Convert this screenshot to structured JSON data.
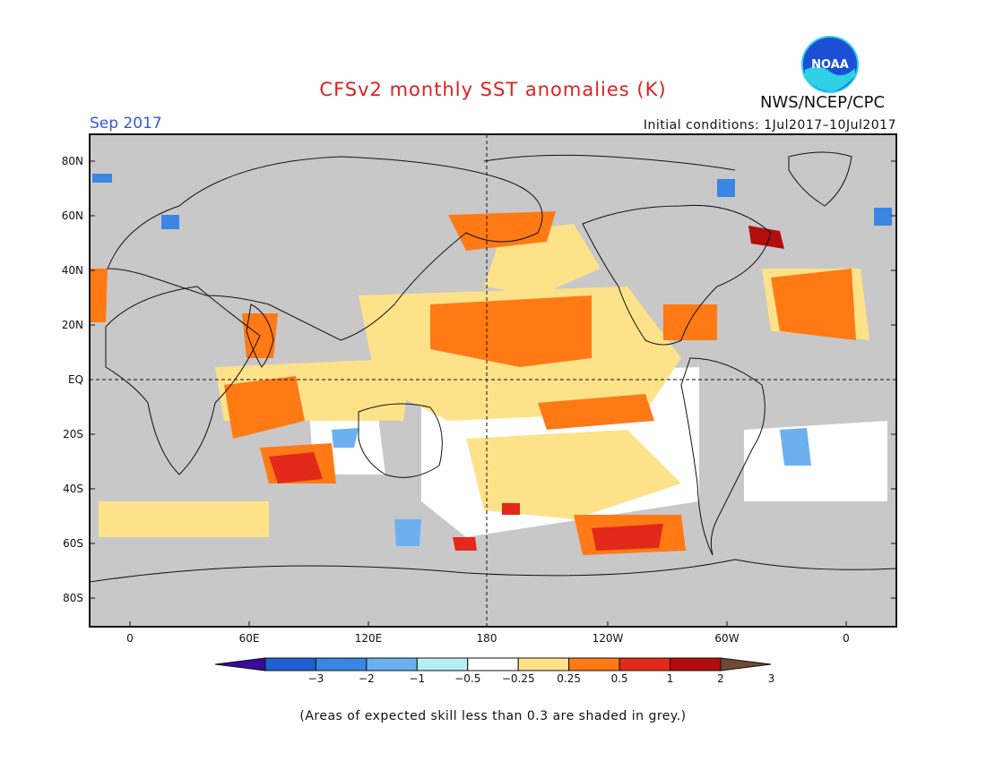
{
  "title": "CFSv2 monthly SST anomalies (K)",
  "month": "Sep 2017",
  "organization": "NWS/NCEP/CPC",
  "initial_conditions": "Initial conditions: 1Jul2017–10Jul2017",
  "logo_text": "NOAA",
  "caption": "(Areas of expected skill less than 0.3 are shaded in grey.)",
  "map": {
    "lat_labels": [
      "80N",
      "60N",
      "40N",
      "20N",
      "EQ",
      "20S",
      "40S",
      "60S",
      "80S"
    ],
    "lon_labels": [
      "0",
      "60E",
      "120E",
      "180",
      "120W",
      "60W",
      "0"
    ],
    "skill_mask_color": "#c8c8c8",
    "grid": "dashed equator and dateline only"
  },
  "legend": {
    "labels": [
      "−3",
      "−2",
      "−1",
      "−0.5",
      "−0.25",
      "0.25",
      "0.5",
      "1",
      "2",
      "3"
    ],
    "colors": [
      "#3a0a9a",
      "#1f5fd0",
      "#3b86e3",
      "#6cb0f0",
      "#b7eef4",
      "#ffffff",
      "#fde28a",
      "#ff7a14",
      "#e3291a",
      "#b30d0d",
      "#6e4a34"
    ]
  }
}
